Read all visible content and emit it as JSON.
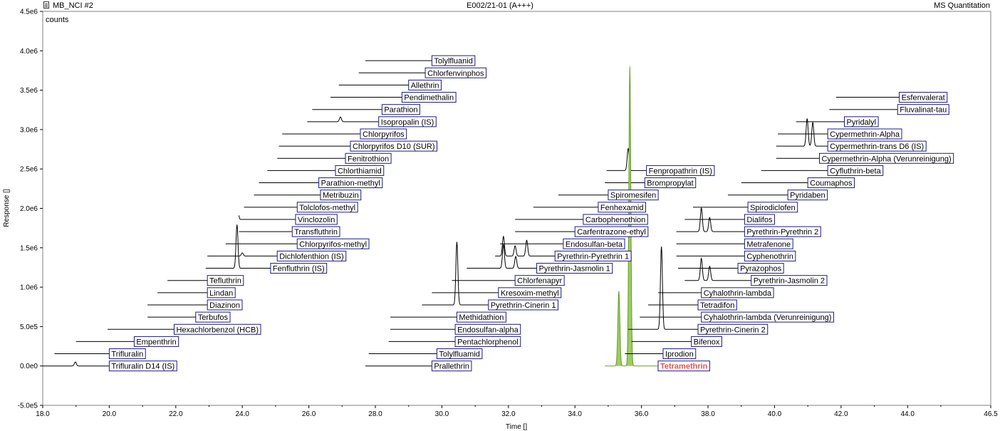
{
  "header": {
    "left_title": "MB_NCI #2",
    "center_title": "E002/21-01 (A+++)",
    "right_title": "MS Quantitation"
  },
  "colors": {
    "trace": "#000000",
    "label_border": "#1a1a8c",
    "highlight_text": "#e8524a",
    "highlight_fill": "#9ccc65",
    "highlight_stroke": "#6a9a2a"
  },
  "chart_data": {
    "type": "line",
    "units_label": "counts",
    "xlabel": "Time []",
    "ylabel": "Response []",
    "xlim": [
      18.0,
      46.5
    ],
    "ylim": [
      -500000,
      4500000
    ],
    "x_ticks": [
      "18.0",
      "20.0",
      "22.0",
      "24.0",
      "26.0",
      "28.0",
      "30.0",
      "32.0",
      "34.0",
      "36.0",
      "38.0",
      "40.0",
      "42.0",
      "44.0",
      "46.5"
    ],
    "x_tick_values": [
      18,
      20,
      22,
      24,
      26,
      28,
      30,
      32,
      34,
      36,
      38,
      40,
      42,
      44,
      46.5
    ],
    "y_ticks": [
      "4.5e6",
      "4.0e6",
      "3.5e6",
      "3.0e6",
      "2.5e6",
      "2.0e6",
      "1.5e6",
      "1.0e6",
      "5.0e5",
      "0.0e0",
      "-5.0e5"
    ],
    "y_tick_values": [
      4500000,
      4000000,
      3500000,
      3000000,
      2500000,
      2000000,
      1500000,
      1000000,
      500000,
      0,
      -500000
    ],
    "grid": false,
    "legend": "none",
    "series": [
      {
        "name": "Trifluralin D14 (IS)",
        "x_start": 18.0,
        "x_end": 20.0,
        "baseline": 0,
        "label_x": 20.0,
        "peaks": [
          [
            18.98,
            50000
          ]
        ]
      },
      {
        "name": "Trifluralin",
        "x_start": 18.35,
        "x_end": 20.0,
        "baseline": 155000,
        "label_x": 20.0,
        "peaks": []
      },
      {
        "name": "Empenthrin",
        "x_start": 19.0,
        "x_end": 20.75,
        "baseline": 310000,
        "label_x": 20.75,
        "peaks": []
      },
      {
        "name": "Hexachlorbenzol (HCB)",
        "x_start": 19.95,
        "x_end": 21.95,
        "baseline": 465000,
        "label_x": 21.95,
        "peaks": []
      },
      {
        "name": "Terbufos",
        "x_start": 21.15,
        "x_end": 22.6,
        "baseline": 620000,
        "label_x": 22.6,
        "peaks": []
      },
      {
        "name": "Diazinon",
        "x_start": 21.15,
        "x_end": 22.95,
        "baseline": 775000,
        "label_x": 22.95,
        "peaks": []
      },
      {
        "name": "Lindan",
        "x_start": 21.45,
        "x_end": 22.95,
        "baseline": 930000,
        "label_x": 22.95,
        "peaks": []
      },
      {
        "name": "Tefluthrin",
        "x_start": 21.75,
        "x_end": 22.95,
        "baseline": 1085000,
        "label_x": 22.95,
        "peaks": []
      },
      {
        "name": "Fenfluthrin (IS)",
        "x_start": 22.9,
        "x_end": 24.85,
        "baseline": 1240000,
        "label_x": 24.85,
        "peaks": [
          [
            23.84,
            550000
          ]
        ]
      },
      {
        "name": "Dichlofenthion (IS)",
        "x_start": 22.95,
        "x_end": 25.05,
        "baseline": 1395000,
        "label_x": 25.05,
        "peaks": [
          [
            24.0,
            40000
          ]
        ]
      },
      {
        "name": "Chlorpyrifos-methyl",
        "x_start": 23.5,
        "x_end": 25.65,
        "baseline": 1550000,
        "label_x": 25.65,
        "peaks": []
      },
      {
        "name": "Transfluthrin",
        "x_start": 23.9,
        "x_end": 25.5,
        "baseline": 1705000,
        "label_x": 25.5,
        "peaks": []
      },
      {
        "name": "Vinclozolin",
        "x_start": 23.9,
        "x_end": 25.6,
        "baseline": 1860000,
        "label_x": 25.6,
        "peaks": [
          [
            23.84,
            380000
          ]
        ]
      },
      {
        "name": "Tolclofos-methyl",
        "x_start": 24.05,
        "x_end": 25.65,
        "baseline": 2015000,
        "label_x": 25.65,
        "peaks": []
      },
      {
        "name": "Metribuzin",
        "x_start": 24.35,
        "x_end": 26.35,
        "baseline": 2170000,
        "label_x": 26.35,
        "peaks": []
      },
      {
        "name": "Parathion-methyl",
        "x_start": 24.5,
        "x_end": 26.3,
        "baseline": 2325000,
        "label_x": 26.3,
        "peaks": []
      },
      {
        "name": "Chlorthiamid",
        "x_start": 24.75,
        "x_end": 26.8,
        "baseline": 2480000,
        "label_x": 26.8,
        "peaks": []
      },
      {
        "name": "Fenitrothion",
        "x_start": 25.05,
        "x_end": 27.1,
        "baseline": 2635000,
        "label_x": 27.1,
        "peaks": []
      },
      {
        "name": "Chlorpyrifos D10 (SUR)",
        "x_start": 25.1,
        "x_end": 27.25,
        "baseline": 2790000,
        "label_x": 27.25,
        "peaks": []
      },
      {
        "name": "Chlorpyrifos",
        "x_start": 25.2,
        "x_end": 27.55,
        "baseline": 2945000,
        "label_x": 27.55,
        "peaks": []
      },
      {
        "name": "Isopropalin (IS)",
        "x_start": 25.95,
        "x_end": 28.1,
        "baseline": 3100000,
        "label_x": 28.1,
        "peaks": [
          [
            26.95,
            60000
          ]
        ]
      },
      {
        "name": "Parathion",
        "x_start": 26.1,
        "x_end": 28.2,
        "baseline": 3255000,
        "label_x": 28.2,
        "peaks": []
      },
      {
        "name": "Pendimethalin",
        "x_start": 26.65,
        "x_end": 28.8,
        "baseline": 3410000,
        "label_x": 28.8,
        "peaks": []
      },
      {
        "name": "Allethrin",
        "x_start": 26.9,
        "x_end": 29.0,
        "baseline": 3565000,
        "label_x": 29.0,
        "peaks": []
      },
      {
        "name": "Chlorfenvinphos",
        "x_start": 27.5,
        "x_end": 29.5,
        "baseline": 3720000,
        "label_x": 29.5,
        "peaks": []
      },
      {
        "name": "Tolylfluanid",
        "x_start": 27.7,
        "x_end": 29.7,
        "baseline": 3875000,
        "label_x": 29.7,
        "peaks": []
      },
      {
        "name": "Prallethrin",
        "x_start": 27.7,
        "x_end": 29.7,
        "baseline": 0,
        "label_x": 29.7,
        "peaks": []
      },
      {
        "name": "Tolylfluamid",
        "x_start": 27.8,
        "x_end": 29.85,
        "baseline": 155000,
        "label_x": 29.85,
        "peaks": []
      },
      {
        "name": "Pentachlorphenol",
        "x_start": 28.4,
        "x_end": 30.4,
        "baseline": 310000,
        "label_x": 30.4,
        "peaks": []
      },
      {
        "name": "Endosulfan-alpha",
        "x_start": 28.45,
        "x_end": 30.4,
        "baseline": 465000,
        "label_x": 30.4,
        "peaks": []
      },
      {
        "name": "Methidathion",
        "x_start": 28.45,
        "x_end": 30.45,
        "baseline": 620000,
        "label_x": 30.45,
        "peaks": []
      },
      {
        "name": "Pyrethrin-Cinerin 1",
        "x_start": 29.4,
        "x_end": 31.4,
        "baseline": 775000,
        "label_x": 31.4,
        "peaks": [
          [
            30.45,
            800000
          ]
        ]
      },
      {
        "name": "Kresoxim-methyl",
        "x_start": 29.7,
        "x_end": 31.7,
        "baseline": 930000,
        "label_x": 31.7,
        "peaks": []
      },
      {
        "name": "Chlorfenapyr",
        "x_start": 30.3,
        "x_end": 32.2,
        "baseline": 1085000,
        "label_x": 32.2,
        "peaks": []
      },
      {
        "name": "Pyrethrin-Jasmolin 1",
        "x_start": 30.75,
        "x_end": 32.85,
        "baseline": 1240000,
        "label_x": 32.85,
        "peaks": [
          [
            31.85,
            300000
          ],
          [
            32.22,
            150000
          ]
        ]
      },
      {
        "name": "Pyrethrin-Pyrethrin 1",
        "x_start": 31.6,
        "x_end": 33.4,
        "baseline": 1395000,
        "label_x": 33.4,
        "peaks": [
          [
            31.85,
            250000
          ],
          [
            32.2,
            130000
          ],
          [
            32.55,
            200000
          ]
        ]
      },
      {
        "name": "Endosulfan-beta",
        "x_start": 31.75,
        "x_end": 33.65,
        "baseline": 1550000,
        "label_x": 33.65,
        "peaks": []
      },
      {
        "name": "Carfentrazone-ethyl",
        "x_start": 32.2,
        "x_end": 34.0,
        "baseline": 1705000,
        "label_x": 34.0,
        "peaks": []
      },
      {
        "name": "Carbophenothion",
        "x_start": 32.2,
        "x_end": 34.25,
        "baseline": 1860000,
        "label_x": 34.25,
        "peaks": []
      },
      {
        "name": "Fenhexamid",
        "x_start": 32.75,
        "x_end": 34.7,
        "baseline": 2015000,
        "label_x": 34.7,
        "peaks": []
      },
      {
        "name": "Spiromesifen",
        "x_start": 33.5,
        "x_end": 35.0,
        "baseline": 2170000,
        "label_x": 35.0,
        "peaks": []
      },
      {
        "name": "Brompropylat",
        "x_start": 34.9,
        "x_end": 36.1,
        "baseline": 2325000,
        "label_x": 36.1,
        "peaks": []
      },
      {
        "name": "Fenpropathrin (IS)",
        "x_start": 34.95,
        "x_end": 36.15,
        "baseline": 2480000,
        "label_x": 36.15,
        "peaks": [
          [
            35.6,
            280000
          ]
        ]
      },
      {
        "name": "Tetramethrin",
        "x_start": 34.9,
        "x_end": 36.5,
        "baseline": 0,
        "label_x": 36.5,
        "peaks": [
          [
            35.32,
            950000
          ],
          [
            35.65,
            3800000
          ]
        ],
        "highlight": true
      },
      {
        "name": "Iprodion",
        "x_start": 35.5,
        "x_end": 36.65,
        "baseline": 155000,
        "label_x": 36.65,
        "peaks": []
      },
      {
        "name": "Bifenox",
        "x_start": 35.7,
        "x_end": 37.5,
        "baseline": 310000,
        "label_x": 37.5,
        "peaks": []
      },
      {
        "name": "Pyrethrin-Cinerin 2",
        "x_start": 35.6,
        "x_end": 37.7,
        "baseline": 465000,
        "label_x": 37.7,
        "peaks": [
          [
            36.6,
            1050000
          ]
        ]
      },
      {
        "name": "Cyhalothrin-lambda (Verunreinigung)",
        "x_start": 35.95,
        "x_end": 37.8,
        "baseline": 620000,
        "label_x": 37.8,
        "peaks": []
      },
      {
        "name": "Tetradifon",
        "x_start": 36.2,
        "x_end": 37.7,
        "baseline": 775000,
        "label_x": 37.7,
        "peaks": []
      },
      {
        "name": "Cyhalothrin-lambda",
        "x_start": 36.5,
        "x_end": 37.8,
        "baseline": 930000,
        "label_x": 37.8,
        "peaks": []
      },
      {
        "name": "Pyrethrin-Jasmolin 2",
        "x_start": 37.3,
        "x_end": 39.3,
        "baseline": 1085000,
        "label_x": 39.3,
        "peaks": [
          [
            37.8,
            280000
          ],
          [
            38.05,
            180000
          ]
        ]
      },
      {
        "name": "Pyrazophos",
        "x_start": 37.1,
        "x_end": 38.9,
        "baseline": 1240000,
        "label_x": 38.9,
        "peaks": []
      },
      {
        "name": "Cyphenothrin",
        "x_start": 37.05,
        "x_end": 39.1,
        "baseline": 1395000,
        "label_x": 39.1,
        "peaks": []
      },
      {
        "name": "Metrafenone",
        "x_start": 37.05,
        "x_end": 39.1,
        "baseline": 1550000,
        "label_x": 39.1,
        "peaks": []
      },
      {
        "name": "Pyrethrin-Pyrethrin 2",
        "x_start": 37.05,
        "x_end": 39.1,
        "baseline": 1705000,
        "label_x": 39.1,
        "peaks": [
          [
            37.8,
            300000
          ],
          [
            38.05,
            180000
          ]
        ]
      },
      {
        "name": "Dialifos",
        "x_start": 37.3,
        "x_end": 39.1,
        "baseline": 1860000,
        "label_x": 39.1,
        "peaks": []
      },
      {
        "name": "Spirodiclofen",
        "x_start": 37.55,
        "x_end": 39.2,
        "baseline": 2015000,
        "label_x": 39.2,
        "peaks": []
      },
      {
        "name": "Pyridaben",
        "x_start": 38.6,
        "x_end": 40.4,
        "baseline": 2170000,
        "label_x": 40.4,
        "peaks": []
      },
      {
        "name": "Coumaphos",
        "x_start": 39.0,
        "x_end": 41.0,
        "baseline": 2325000,
        "label_x": 41.0,
        "peaks": []
      },
      {
        "name": "Cyfluthrin-beta",
        "x_start": 39.6,
        "x_end": 41.6,
        "baseline": 2480000,
        "label_x": 41.6,
        "peaks": []
      },
      {
        "name": "Cypermethrin-Alpha (Verunreinigung)",
        "x_start": 40.05,
        "x_end": 41.35,
        "baseline": 2635000,
        "label_x": 41.35,
        "peaks": []
      },
      {
        "name": "Cypermethrin-trans D6 (IS)",
        "x_start": 40.05,
        "x_end": 41.6,
        "baseline": 2790000,
        "label_x": 41.6,
        "peaks": [
          [
            40.98,
            350000
          ],
          [
            41.15,
            300000
          ]
        ]
      },
      {
        "name": "Cypermethrin-Alpha",
        "x_start": 40.1,
        "x_end": 41.6,
        "baseline": 2945000,
        "label_x": 41.6,
        "peaks": []
      },
      {
        "name": "Pyridalyl",
        "x_start": 40.65,
        "x_end": 42.1,
        "baseline": 3100000,
        "label_x": 42.1,
        "peaks": []
      },
      {
        "name": "Fluvalinat-tau",
        "x_start": 41.65,
        "x_end": 43.7,
        "baseline": 3255000,
        "label_x": 43.7,
        "peaks": []
      },
      {
        "name": "Esfenvalerat",
        "x_start": 41.85,
        "x_end": 43.75,
        "baseline": 3410000,
        "label_x": 43.75,
        "peaks": []
      }
    ]
  }
}
